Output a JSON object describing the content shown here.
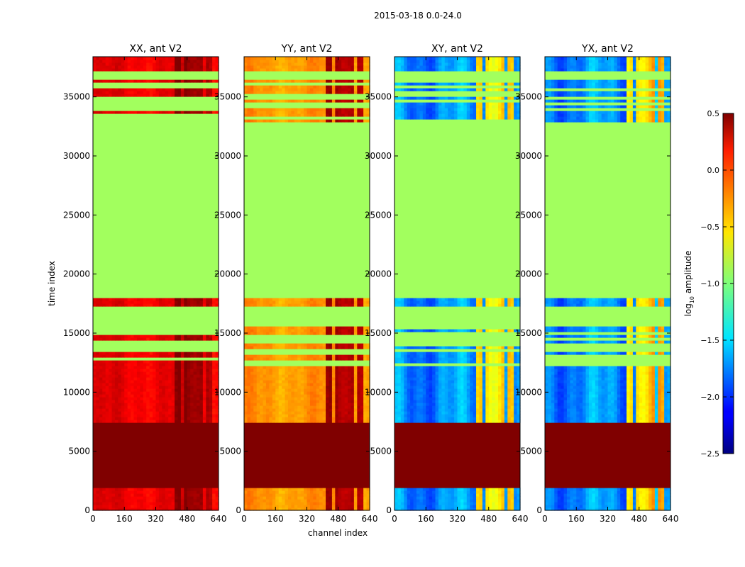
{
  "chart_data": {
    "type": "heatmap",
    "suptitle": "2015-03-18 0.0-24.0",
    "xlabel": "channel index",
    "ylabel": "time index",
    "xlim": [
      0,
      640
    ],
    "ylim": [
      0,
      38400
    ],
    "xticks": [
      0,
      160,
      320,
      480,
      640
    ],
    "yticks": [
      0,
      5000,
      10000,
      15000,
      20000,
      25000,
      30000,
      35000
    ],
    "colormap": "jet",
    "colorbar": {
      "label": "log10 amplitude",
      "label_prefix": "log",
      "label_sub": "10",
      "label_suffix": " amplitude",
      "range": [
        -2.5,
        0.5
      ],
      "ticks": [
        "0.5",
        "0.0",
        "−0.5",
        "−1.0",
        "−1.5",
        "−2.0",
        "−2.5"
      ],
      "tick_values": [
        0.5,
        0.0,
        -0.5,
        -1.0,
        -1.5,
        -2.0,
        -2.5
      ]
    },
    "flag_value": -0.9,
    "saturated_value": 0.5,
    "time_bands": [
      {
        "t0": 0,
        "t1": 1900,
        "state": "data"
      },
      {
        "t0": 1900,
        "t1": 2800,
        "state": "saturated"
      },
      {
        "t0": 2800,
        "t1": 2900,
        "state": "flagged"
      },
      {
        "t0": 2900,
        "t1": 6500,
        "state": "saturated"
      },
      {
        "t0": 6500,
        "t1": 6600,
        "state": "flagged"
      },
      {
        "t0": 6600,
        "t1": 7500,
        "state": "saturated"
      },
      {
        "t0": 7500,
        "t1": 12300,
        "state": "data"
      },
      {
        "t0": 12300,
        "t1": 13700,
        "state": "striped"
      },
      {
        "t0": 13700,
        "t1": 15700,
        "state": "sparse"
      },
      {
        "t0": 15700,
        "t1": 17200,
        "state": "flagged"
      },
      {
        "t0": 17200,
        "t1": 17900,
        "state": "data"
      },
      {
        "t0": 17900,
        "t1": 33000,
        "state": "flagged"
      },
      {
        "t0": 33000,
        "t1": 36500,
        "state": "striped"
      },
      {
        "t0": 36500,
        "t1": 37200,
        "state": "flagged"
      },
      {
        "t0": 37200,
        "t1": 38400,
        "state": "data"
      }
    ],
    "channel_blocks": [
      {
        "c0": 0,
        "c1": 410,
        "boost": 0.0
      },
      {
        "c0": 410,
        "c1": 450,
        "boost": 0.55
      },
      {
        "c0": 450,
        "c1": 470,
        "boost": 0.0
      },
      {
        "c0": 470,
        "c1": 505,
        "boost": 0.55
      },
      {
        "c0": 505,
        "c1": 520,
        "boost": 0.0
      },
      {
        "c0": 520,
        "c1": 560,
        "boost": 0.55
      },
      {
        "c0": 560,
        "c1": 575,
        "boost": 0.0
      },
      {
        "c0": 575,
        "c1": 610,
        "boost": 0.55
      },
      {
        "c0": 610,
        "c1": 640,
        "boost": 0.0
      }
    ],
    "panels": [
      {
        "title": "XX, ant V2",
        "base": 0.18,
        "spread": 0.12,
        "block_gain": 0.45
      },
      {
        "title": "YY, ant V2",
        "base": -0.32,
        "spread": 0.12,
        "block_gain": 1.3
      },
      {
        "title": "XY, ant V2",
        "base": -1.72,
        "spread": 0.3,
        "block_gain": 2.3
      },
      {
        "title": "YX, ant V2",
        "base": -1.72,
        "spread": 0.3,
        "block_gain": 2.3
      }
    ]
  }
}
